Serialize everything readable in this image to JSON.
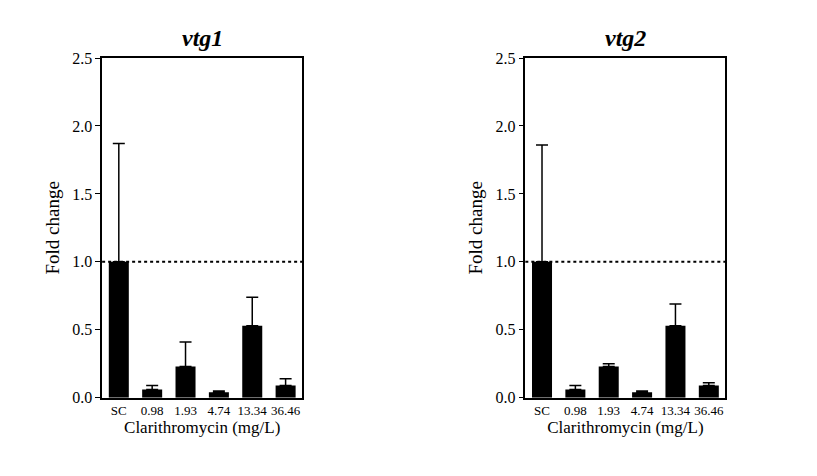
{
  "chart_data": [
    {
      "type": "bar",
      "title": "vtg1",
      "x_label": "Clarithromycin (mg/L)",
      "y_label": "Fold change",
      "categories": [
        "SC",
        "0.98",
        "1.93",
        "4.74",
        "13.34",
        "36.46"
      ],
      "values": [
        1.0,
        0.06,
        0.23,
        0.04,
        0.53,
        0.09
      ],
      "errors": [
        0.87,
        0.03,
        0.18,
        0.01,
        0.21,
        0.05
      ],
      "reference_line": 1.0,
      "color": "#000000",
      "ylim": [
        0,
        2.5
      ],
      "yticks": [
        {
          "value": 0,
          "label": "0.0"
        },
        0.5,
        {
          "value": 1,
          "label": "1.0"
        },
        1.5,
        {
          "value": 2,
          "label": "2.0"
        },
        2.5
      ]
    },
    {
      "type": "bar",
      "title": "vtg2",
      "x_label": "Clarithromycin (mg/L)",
      "y_label": "Fold change",
      "categories": [
        "SC",
        "0.98",
        "1.93",
        "4.74",
        "13.34",
        "36.46"
      ],
      "values": [
        1.0,
        0.06,
        0.23,
        0.04,
        0.53,
        0.09
      ],
      "errors": [
        0.86,
        0.03,
        0.02,
        0.01,
        0.16,
        0.02
      ],
      "reference_line": 1.0,
      "color": "#000000",
      "ylim": [
        0,
        2.5
      ],
      "yticks": [
        {
          "value": 0,
          "label": "0.0"
        },
        0.5,
        {
          "value": 1,
          "label": "1.0"
        },
        1.5,
        {
          "value": 2,
          "label": "2.0"
        },
        2.5
      ]
    }
  ]
}
